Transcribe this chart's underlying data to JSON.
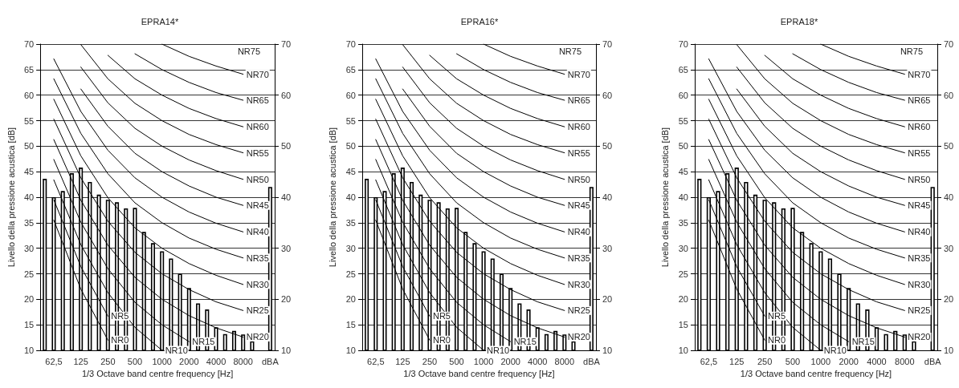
{
  "chart_data": [
    {
      "type": "bar",
      "title": "EPRA14*",
      "xlabel": "1/3 Octave band centre frequency [Hz]",
      "ylabel": "Livello della pressione acustica [dB]",
      "categories": [
        null,
        "62,5",
        null,
        null,
        "125",
        null,
        null,
        "250",
        null,
        null,
        "500",
        null,
        null,
        "1000",
        null,
        null,
        "2000",
        null,
        null,
        "4000",
        null,
        null,
        "8000",
        null,
        null,
        "dBA"
      ],
      "ylim": [
        10,
        70
      ],
      "yticks": [
        10,
        15,
        20,
        25,
        30,
        35,
        40,
        45,
        50,
        55,
        60,
        65,
        70
      ],
      "y2lim": [
        10,
        70
      ],
      "y2ticks": [
        10,
        20,
        30,
        40,
        50,
        60,
        70
      ],
      "grid": "y",
      "marker": "none",
      "line_style": "solid",
      "series": [
        {
          "color": "#000000",
          "values": [
            43.6,
            40,
            41.2,
            44.7,
            45.8,
            43,
            40.5,
            39.5,
            39,
            37.8,
            37.9,
            33.2,
            31,
            29.4,
            28,
            25,
            22.2,
            19.2,
            18,
            14.5,
            13.2,
            13.8,
            13.1,
            11.8,
            null,
            42
          ]
        },
        {
          "type": "line",
          "name": "NR0",
          "color": "#000000",
          "values": [
            null,
            35.5,
            null,
            null,
            22,
            null,
            null,
            12,
            null,
            null,
            null,
            null,
            null,
            null,
            null,
            null,
            null,
            null,
            null,
            null,
            null,
            null,
            null,
            null,
            null,
            null
          ]
        },
        {
          "type": "line",
          "name": "NR5",
          "color": "#000000",
          "values": [
            null,
            39.5,
            null,
            null,
            26.4,
            null,
            null,
            16.7,
            null,
            null,
            null,
            null,
            null,
            null,
            null,
            null,
            null,
            null,
            null,
            null,
            null,
            null,
            null,
            null,
            null,
            null
          ]
        },
        {
          "type": "line",
          "name": "NR10",
          "color": "#000000",
          "values": [
            null,
            43.4,
            null,
            null,
            30.7,
            null,
            null,
            21.3,
            null,
            null,
            14.5,
            null,
            null,
            10,
            null,
            null,
            null,
            null,
            null,
            null,
            null,
            null,
            null,
            null,
            null,
            null
          ]
        },
        {
          "type": "line",
          "name": "NR15",
          "color": "#000000",
          "values": [
            null,
            47.4,
            null,
            null,
            35.1,
            null,
            null,
            26,
            null,
            null,
            19.4,
            null,
            null,
            15,
            null,
            null,
            11.7,
            null,
            null,
            null,
            null,
            null,
            null,
            null,
            null,
            null
          ]
        },
        {
          "type": "line",
          "name": "NR20",
          "color": "#000000",
          "values": [
            null,
            51.3,
            null,
            null,
            39.4,
            null,
            null,
            30.6,
            null,
            null,
            24.3,
            null,
            null,
            20,
            null,
            null,
            16.8,
            null,
            null,
            14.4,
            null,
            null,
            12.6,
            null,
            null,
            null
          ]
        },
        {
          "type": "line",
          "name": "NR25",
          "color": "#000000",
          "values": [
            null,
            55.3,
            null,
            null,
            43.8,
            null,
            null,
            35.3,
            null,
            null,
            29.2,
            null,
            null,
            25,
            null,
            null,
            21.9,
            null,
            null,
            19.5,
            null,
            null,
            17.8,
            null,
            null,
            null
          ]
        },
        {
          "type": "line",
          "name": "NR30",
          "color": "#000000",
          "values": [
            null,
            59.2,
            null,
            null,
            48.1,
            null,
            null,
            39.9,
            null,
            null,
            34,
            null,
            null,
            30,
            null,
            null,
            27,
            null,
            null,
            24.7,
            null,
            null,
            22.9,
            null,
            null,
            null
          ]
        },
        {
          "type": "line",
          "name": "NR35",
          "color": "#000000",
          "values": [
            null,
            63.2,
            null,
            null,
            52.5,
            null,
            null,
            44.6,
            null,
            null,
            38.9,
            null,
            null,
            35,
            null,
            null,
            32,
            null,
            null,
            29.8,
            null,
            null,
            28.1,
            null,
            null,
            null
          ]
        },
        {
          "type": "line",
          "name": "NR40",
          "color": "#000000",
          "values": [
            null,
            67.1,
            null,
            null,
            56.8,
            null,
            null,
            49.2,
            null,
            null,
            43.8,
            null,
            null,
            40,
            null,
            null,
            37.1,
            null,
            null,
            34.9,
            null,
            null,
            33.2,
            null,
            null,
            null
          ]
        },
        {
          "type": "line",
          "name": "NR45",
          "color": "#000000",
          "values": [
            null,
            null,
            null,
            null,
            61.2,
            null,
            null,
            53.9,
            null,
            null,
            48.6,
            null,
            null,
            45,
            null,
            null,
            42.2,
            null,
            null,
            40,
            null,
            null,
            38.4,
            null,
            null,
            null
          ]
        },
        {
          "type": "line",
          "name": "NR50",
          "color": "#000000",
          "values": [
            null,
            null,
            null,
            null,
            65.5,
            null,
            null,
            58.5,
            null,
            null,
            53.5,
            null,
            null,
            50,
            null,
            null,
            47.3,
            null,
            null,
            45.2,
            null,
            null,
            43.5,
            null,
            null,
            null
          ]
        },
        {
          "type": "line",
          "name": "NR55",
          "color": "#000000",
          "values": [
            null,
            null,
            null,
            null,
            69.9,
            null,
            null,
            63.2,
            null,
            null,
            58.4,
            null,
            null,
            55,
            null,
            null,
            52.3,
            null,
            null,
            50.3,
            null,
            null,
            48.7,
            null,
            null,
            null
          ]
        },
        {
          "type": "line",
          "name": "NR60",
          "color": "#000000",
          "values": [
            null,
            null,
            null,
            null,
            null,
            null,
            null,
            67.8,
            null,
            null,
            63.2,
            null,
            null,
            60,
            null,
            null,
            57.4,
            null,
            null,
            55.4,
            null,
            null,
            53.8,
            null,
            null,
            null
          ]
        },
        {
          "type": "line",
          "name": "NR65",
          "color": "#000000",
          "values": [
            null,
            null,
            null,
            null,
            null,
            null,
            null,
            null,
            null,
            null,
            68.1,
            null,
            null,
            65,
            null,
            null,
            62.5,
            null,
            null,
            60.5,
            null,
            null,
            59,
            null,
            null,
            null
          ]
        },
        {
          "type": "line",
          "name": "NR70",
          "color": "#000000",
          "values": [
            null,
            null,
            null,
            null,
            null,
            null,
            null,
            null,
            null,
            null,
            null,
            null,
            null,
            70,
            null,
            null,
            67.6,
            null,
            null,
            65.7,
            null,
            null,
            64.1,
            null,
            null,
            null
          ]
        }
      ],
      "annotations": [
        "NR75"
      ]
    },
    {
      "type": "bar",
      "title": "EPRA16*",
      "xlabel": "1/3 Octave band centre frequency [Hz]",
      "ylabel": "Livello della pressione acustica [dB]",
      "categories": [
        null,
        "62,5",
        null,
        null,
        "125",
        null,
        null,
        "250",
        null,
        null,
        "500",
        null,
        null,
        "1000",
        null,
        null,
        "2000",
        null,
        null,
        "4000",
        null,
        null,
        "8000",
        null,
        null,
        "dBA"
      ],
      "ylim": [
        10,
        70
      ],
      "yticks": [
        10,
        15,
        20,
        25,
        30,
        35,
        40,
        45,
        50,
        55,
        60,
        65,
        70
      ],
      "y2lim": [
        10,
        70
      ],
      "y2ticks": [
        10,
        20,
        30,
        40,
        50,
        60,
        70
      ],
      "grid": "y",
      "marker": "none",
      "line_style": "solid",
      "series": [
        {
          "type": "bar",
          "color": "#000000",
          "values": [
            43.6,
            40,
            41.2,
            44.7,
            45.8,
            43,
            40.5,
            39.5,
            39,
            37.8,
            37.9,
            33.2,
            31,
            29.4,
            28,
            25,
            22.2,
            19.2,
            18,
            14.5,
            13.2,
            13.8,
            13.1,
            11.8,
            null,
            42
          ]
        },
        {
          "type": "line",
          "name": "NR0",
          "color": "#000000",
          "values": [
            null,
            35.5,
            null,
            null,
            22,
            null,
            null,
            12,
            null,
            null,
            null,
            null,
            null,
            null,
            null,
            null,
            null,
            null,
            null,
            null,
            null,
            null,
            null,
            null,
            null,
            null
          ]
        },
        {
          "type": "line",
          "name": "NR5",
          "color": "#000000",
          "values": [
            null,
            39.5,
            null,
            null,
            26.4,
            null,
            null,
            16.7,
            null,
            null,
            null,
            null,
            null,
            null,
            null,
            null,
            null,
            null,
            null,
            null,
            null,
            null,
            null,
            null,
            null,
            null
          ]
        },
        {
          "type": "line",
          "name": "NR10",
          "color": "#000000",
          "values": [
            null,
            43.4,
            null,
            null,
            30.7,
            null,
            null,
            21.3,
            null,
            null,
            14.5,
            null,
            null,
            10,
            null,
            null,
            null,
            null,
            null,
            null,
            null,
            null,
            null,
            null,
            null,
            null
          ]
        },
        {
          "type": "line",
          "name": "NR15",
          "color": "#000000",
          "values": [
            null,
            47.4,
            null,
            null,
            35.1,
            null,
            null,
            26,
            null,
            null,
            19.4,
            null,
            null,
            15,
            null,
            null,
            11.7,
            null,
            null,
            null,
            null,
            null,
            null,
            null,
            null,
            null
          ]
        },
        {
          "type": "line",
          "name": "NR20",
          "color": "#000000",
          "values": [
            null,
            51.3,
            null,
            null,
            39.4,
            null,
            null,
            30.6,
            null,
            null,
            24.3,
            null,
            null,
            20,
            null,
            null,
            16.8,
            null,
            null,
            14.4,
            null,
            null,
            12.6,
            null,
            null,
            null
          ]
        },
        {
          "type": "line",
          "name": "NR25",
          "color": "#000000",
          "values": [
            null,
            55.3,
            null,
            null,
            43.8,
            null,
            null,
            35.3,
            null,
            null,
            29.2,
            null,
            null,
            25,
            null,
            null,
            21.9,
            null,
            null,
            19.5,
            null,
            null,
            17.8,
            null,
            null,
            null
          ]
        },
        {
          "type": "line",
          "name": "NR30",
          "color": "#000000",
          "values": [
            null,
            59.2,
            null,
            null,
            48.1,
            null,
            null,
            39.9,
            null,
            null,
            34,
            null,
            null,
            30,
            null,
            null,
            27,
            null,
            null,
            24.7,
            null,
            null,
            22.9,
            null,
            null,
            null
          ]
        },
        {
          "type": "line",
          "name": "NR35",
          "color": "#000000",
          "values": [
            null,
            63.2,
            null,
            null,
            52.5,
            null,
            null,
            44.6,
            null,
            null,
            38.9,
            null,
            null,
            35,
            null,
            null,
            32,
            null,
            null,
            29.8,
            null,
            null,
            28.1,
            null,
            null,
            null
          ]
        },
        {
          "type": "line",
          "name": "NR40",
          "color": "#000000",
          "values": [
            null,
            67.1,
            null,
            null,
            56.8,
            null,
            null,
            49.2,
            null,
            null,
            43.8,
            null,
            null,
            40,
            null,
            null,
            37.1,
            null,
            null,
            34.9,
            null,
            null,
            33.2,
            null,
            null,
            null
          ]
        },
        {
          "type": "line",
          "name": "NR45",
          "color": "#000000",
          "values": [
            null,
            null,
            null,
            null,
            61.2,
            null,
            null,
            53.9,
            null,
            null,
            48.6,
            null,
            null,
            45,
            null,
            null,
            42.2,
            null,
            null,
            40,
            null,
            null,
            38.4,
            null,
            null,
            null
          ]
        },
        {
          "type": "line",
          "name": "NR50",
          "color": "#000000",
          "values": [
            null,
            null,
            null,
            null,
            65.5,
            null,
            null,
            58.5,
            null,
            null,
            53.5,
            null,
            null,
            50,
            null,
            null,
            47.3,
            null,
            null,
            45.2,
            null,
            null,
            43.5,
            null,
            null,
            null
          ]
        },
        {
          "type": "line",
          "name": "NR55",
          "color": "#000000",
          "values": [
            null,
            null,
            null,
            null,
            69.9,
            null,
            null,
            63.2,
            null,
            null,
            58.4,
            null,
            null,
            55,
            null,
            null,
            52.3,
            null,
            null,
            50.3,
            null,
            null,
            48.7,
            null,
            null,
            null
          ]
        },
        {
          "type": "line",
          "name": "NR60",
          "color": "#000000",
          "values": [
            null,
            null,
            null,
            null,
            null,
            null,
            null,
            67.8,
            null,
            null,
            63.2,
            null,
            null,
            60,
            null,
            null,
            57.4,
            null,
            null,
            55.4,
            null,
            null,
            53.8,
            null,
            null,
            null
          ]
        },
        {
          "type": "line",
          "name": "NR65",
          "color": "#000000",
          "values": [
            null,
            null,
            null,
            null,
            null,
            null,
            null,
            null,
            null,
            null,
            68.1,
            null,
            null,
            65,
            null,
            null,
            62.5,
            null,
            null,
            60.5,
            null,
            null,
            59,
            null,
            null,
            null
          ]
        },
        {
          "type": "line",
          "name": "NR70",
          "color": "#000000",
          "values": [
            null,
            null,
            null,
            null,
            null,
            null,
            null,
            null,
            null,
            null,
            null,
            null,
            null,
            70,
            null,
            null,
            67.6,
            null,
            null,
            65.7,
            null,
            null,
            64.1,
            null,
            null,
            null
          ]
        }
      ],
      "annotations": [
        "NR75"
      ]
    },
    {
      "type": "bar",
      "title": "EPRA18*",
      "xlabel": "1/3 Octave band centre frequency [Hz]",
      "ylabel": "Livello della pressione acustica [dB]",
      "categories": [
        null,
        "62,5",
        null,
        null,
        "125",
        null,
        null,
        "250",
        null,
        null,
        "500",
        null,
        null,
        "1000",
        null,
        null,
        "2000",
        null,
        null,
        "4000",
        null,
        null,
        "8000",
        null,
        null,
        "dBA"
      ],
      "ylim": [
        10,
        70
      ],
      "yticks": [
        10,
        15,
        20,
        25,
        30,
        35,
        40,
        45,
        50,
        55,
        60,
        65,
        70
      ],
      "y2lim": [
        10,
        70
      ],
      "y2ticks": [
        10,
        20,
        30,
        40,
        50,
        60,
        70
      ],
      "grid": "y",
      "marker": "none",
      "line_style": "solid",
      "series": [
        {
          "type": "bar",
          "color": "#000000",
          "values": [
            43.6,
            40,
            41.2,
            44.7,
            45.8,
            43,
            40.5,
            39.5,
            39,
            37.8,
            37.9,
            33.2,
            31,
            29.4,
            28,
            25,
            22.2,
            19.2,
            18,
            14.5,
            13.2,
            13.8,
            13.1,
            11.8,
            null,
            42
          ]
        },
        {
          "type": "line",
          "name": "NR0",
          "color": "#000000",
          "values": [
            null,
            35.5,
            null,
            null,
            22,
            null,
            null,
            12,
            null,
            null,
            null,
            null,
            null,
            null,
            null,
            null,
            null,
            null,
            null,
            null,
            null,
            null,
            null,
            null,
            null,
            null
          ]
        },
        {
          "type": "line",
          "name": "NR5",
          "color": "#000000",
          "values": [
            null,
            39.5,
            null,
            null,
            26.4,
            null,
            null,
            16.7,
            null,
            null,
            null,
            null,
            null,
            null,
            null,
            null,
            null,
            null,
            null,
            null,
            null,
            null,
            null,
            null,
            null,
            null
          ]
        },
        {
          "type": "line",
          "name": "NR10",
          "color": "#000000",
          "values": [
            null,
            43.4,
            null,
            null,
            30.7,
            null,
            null,
            21.3,
            null,
            null,
            14.5,
            null,
            null,
            10,
            null,
            null,
            null,
            null,
            null,
            null,
            null,
            null,
            null,
            null,
            null,
            null
          ]
        },
        {
          "type": "line",
          "name": "NR15",
          "color": "#000000",
          "values": [
            null,
            47.4,
            null,
            null,
            35.1,
            null,
            null,
            26,
            null,
            null,
            19.4,
            null,
            null,
            15,
            null,
            null,
            11.7,
            null,
            null,
            null,
            null,
            null,
            null,
            null,
            null,
            null
          ]
        },
        {
          "type": "line",
          "name": "NR20",
          "color": "#000000",
          "values": [
            null,
            51.3,
            null,
            null,
            39.4,
            null,
            null,
            30.6,
            null,
            null,
            24.3,
            null,
            null,
            20,
            null,
            null,
            16.8,
            null,
            null,
            14.4,
            null,
            null,
            12.6,
            null,
            null,
            null
          ]
        },
        {
          "type": "line",
          "name": "NR25",
          "color": "#000000",
          "values": [
            null,
            55.3,
            null,
            null,
            43.8,
            null,
            null,
            35.3,
            null,
            null,
            29.2,
            null,
            null,
            25,
            null,
            null,
            21.9,
            null,
            null,
            19.5,
            null,
            null,
            17.8,
            null,
            null,
            null
          ]
        },
        {
          "type": "line",
          "name": "NR30",
          "color": "#000000",
          "values": [
            null,
            59.2,
            null,
            null,
            48.1,
            null,
            null,
            39.9,
            null,
            null,
            34,
            null,
            null,
            30,
            null,
            null,
            27,
            null,
            null,
            24.7,
            null,
            null,
            22.9,
            null,
            null,
            null
          ]
        },
        {
          "type": "line",
          "name": "NR35",
          "color": "#000000",
          "values": [
            null,
            63.2,
            null,
            null,
            52.5,
            null,
            null,
            44.6,
            null,
            null,
            38.9,
            null,
            null,
            35,
            null,
            null,
            32,
            null,
            null,
            29.8,
            null,
            null,
            28.1,
            null,
            null,
            null
          ]
        },
        {
          "type": "line",
          "name": "NR40",
          "color": "#000000",
          "values": [
            null,
            67.1,
            null,
            null,
            56.8,
            null,
            null,
            49.2,
            null,
            null,
            43.8,
            null,
            null,
            40,
            null,
            null,
            37.1,
            null,
            null,
            34.9,
            null,
            null,
            33.2,
            null,
            null,
            null
          ]
        },
        {
          "type": "line",
          "name": "NR45",
          "color": "#000000",
          "values": [
            null,
            null,
            null,
            null,
            61.2,
            null,
            null,
            53.9,
            null,
            null,
            48.6,
            null,
            null,
            45,
            null,
            null,
            42.2,
            null,
            null,
            40,
            null,
            null,
            38.4,
            null,
            null,
            null
          ]
        },
        {
          "type": "line",
          "name": "NR50",
          "color": "#000000",
          "values": [
            null,
            null,
            null,
            null,
            65.5,
            null,
            null,
            58.5,
            null,
            null,
            53.5,
            null,
            null,
            50,
            null,
            null,
            47.3,
            null,
            null,
            45.2,
            null,
            null,
            43.5,
            null,
            null,
            null
          ]
        },
        {
          "type": "line",
          "name": "NR55",
          "color": "#000000",
          "values": [
            null,
            null,
            null,
            null,
            69.9,
            null,
            null,
            63.2,
            null,
            null,
            58.4,
            null,
            null,
            55,
            null,
            null,
            52.3,
            null,
            null,
            50.3,
            null,
            null,
            48.7,
            null,
            null,
            null
          ]
        },
        {
          "type": "line",
          "name": "NR60",
          "color": "#000000",
          "values": [
            null,
            null,
            null,
            null,
            null,
            null,
            null,
            67.8,
            null,
            null,
            63.2,
            null,
            null,
            60,
            null,
            null,
            57.4,
            null,
            null,
            55.4,
            null,
            null,
            53.8,
            null,
            null,
            null
          ]
        },
        {
          "type": "line",
          "name": "NR65",
          "color": "#000000",
          "values": [
            null,
            null,
            null,
            null,
            null,
            null,
            null,
            null,
            null,
            null,
            68.1,
            null,
            null,
            65,
            null,
            null,
            62.5,
            null,
            null,
            60.5,
            null,
            null,
            59,
            null,
            null,
            null
          ]
        },
        {
          "type": "line",
          "name": "NR70",
          "color": "#000000",
          "values": [
            null,
            null,
            null,
            null,
            null,
            null,
            null,
            null,
            null,
            null,
            null,
            null,
            null,
            70,
            null,
            null,
            67.6,
            null,
            null,
            65.7,
            null,
            null,
            64.1,
            null,
            null,
            null
          ]
        }
      ],
      "annotations": [
        "NR75"
      ]
    }
  ]
}
